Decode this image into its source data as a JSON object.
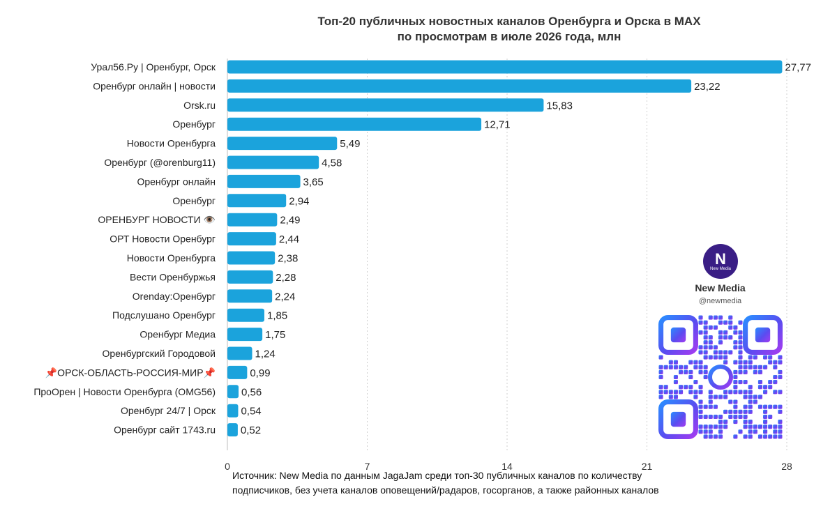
{
  "title_line1": "Топ-20 публичных новостных каналов Оренбурга и Орска в MAX",
  "title_line2": "по просмотрам в июле 2026 года, млн",
  "source_line1": "Источник: New Media по данным JagaJam среди топ-30 публичных каналов по количеству",
  "source_line2": "подписчиков, без учета каналов оповещений/радаров, госорганов, а также районных каналов",
  "brand": {
    "name": "New Media",
    "handle": "@newmedia",
    "logo_glyph": "N",
    "logo_sub": "New Media",
    "logo_icon": "new-media-logo",
    "qr_icon": "qr-code"
  },
  "colors": {
    "bar": "#1ba3dc",
    "grid": "#cfcfcf",
    "logo_bg": "#3a1e85"
  },
  "chart_data": {
    "type": "bar",
    "orientation": "horizontal",
    "title": "Топ-20 публичных новостных каналов Оренбурга и Орска в MAX по просмотрам в июле 2026 года, млн",
    "xlabel": "",
    "ylabel": "",
    "xlim": [
      0,
      28
    ],
    "xticks": [
      "0",
      "7",
      "14",
      "21",
      "28"
    ],
    "grid": "vertical dashed",
    "categories": [
      "Урал56.Ру | Оренбург, Орск",
      "Оренбург онлайн | новости",
      "Orsk.ru",
      "Оренбург",
      "Новости Оренбурга",
      "Оренбург (@orenburg11)",
      "Оренбург онлайн",
      "Оренбург",
      "ОРЕНБУРГ НОВОСТИ 👁️",
      "ОРТ Новости Оренбург",
      "Новости Оренбурга",
      "Вести Оренбуржья",
      "Orenday:Оренбург",
      "Подслушано Оренбург",
      "Оренбург Медиа",
      "Оренбургский Городовой",
      "📌ОРСК-ОБЛАСТЬ-РОССИЯ-МИР📌",
      "ПроОрен | Новости Оренбурга (OMG56)",
      "Оренбург 24/7 | Орск",
      "Оренбург сайт 1743.ru"
    ],
    "values": [
      27.77,
      23.22,
      15.83,
      12.71,
      5.49,
      4.58,
      3.65,
      2.94,
      2.49,
      2.44,
      2.38,
      2.28,
      2.24,
      1.85,
      1.75,
      1.24,
      0.99,
      0.56,
      0.54,
      0.52
    ],
    "value_labels": [
      "27,77",
      "23,22",
      "15,83",
      "12,71",
      "5,49",
      "4,58",
      "3,65",
      "2,94",
      "2,49",
      "2,44",
      "2,38",
      "2,28",
      "2,24",
      "1,85",
      "1,75",
      "1,24",
      "0,99",
      "0,56",
      "0,54",
      "0,52"
    ]
  }
}
